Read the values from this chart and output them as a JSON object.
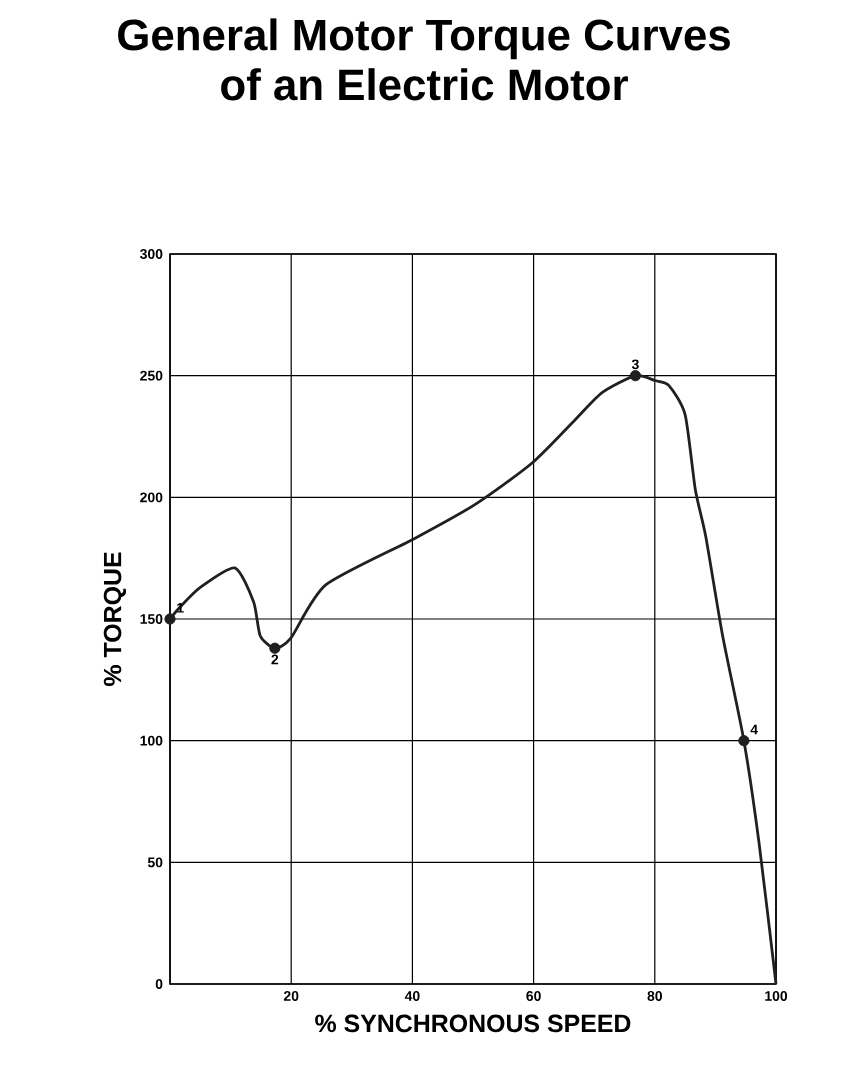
{
  "chart_data": {
    "type": "line",
    "title": "General Motor Torque Curves\nof an Electric Motor",
    "xlabel": "% SYNCHRONOUS SPEED",
    "ylabel": "% TORQUE",
    "xlim": [
      0,
      100
    ],
    "ylim": [
      0,
      300
    ],
    "xticks": [
      {
        "value": 0,
        "label": null
      },
      20,
      40,
      60,
      80,
      100
    ],
    "yticks": [
      0,
      50,
      100,
      150,
      200,
      250,
      300
    ],
    "grid": true,
    "series": [
      {
        "color": "#231f20",
        "marker": "none",
        "x": [
          0,
          1.7,
          5,
          10.7,
          13.8,
          14.9,
          17.3,
          19.9,
          25.7,
          40.3,
          50.3,
          59.7,
          66.9,
          71.3,
          76.8,
          80,
          82.3,
          85,
          86.7,
          88.4,
          91.2,
          94.7,
          97.2,
          100
        ],
        "values": [
          150,
          155,
          163,
          171,
          157,
          143,
          138,
          142,
          164,
          183,
          197,
          214,
          232,
          243,
          250,
          248,
          246,
          234,
          203,
          184,
          143,
          100,
          58,
          0
        ]
      },
      {
        "type": "scatter",
        "color": "#231f20",
        "marker": "circle",
        "x": [
          0,
          17.3,
          76.8,
          94.7
        ],
        "values": [
          150,
          138,
          250,
          100
        ]
      }
    ],
    "annotations": [
      {
        "text": "1",
        "x": 0,
        "y": 150
      },
      {
        "text": "2",
        "x": 17.3,
        "y": 138
      },
      {
        "text": "3",
        "x": 76.8,
        "y": 250
      },
      {
        "text": "4",
        "x": 94.7,
        "y": 100
      }
    ]
  }
}
